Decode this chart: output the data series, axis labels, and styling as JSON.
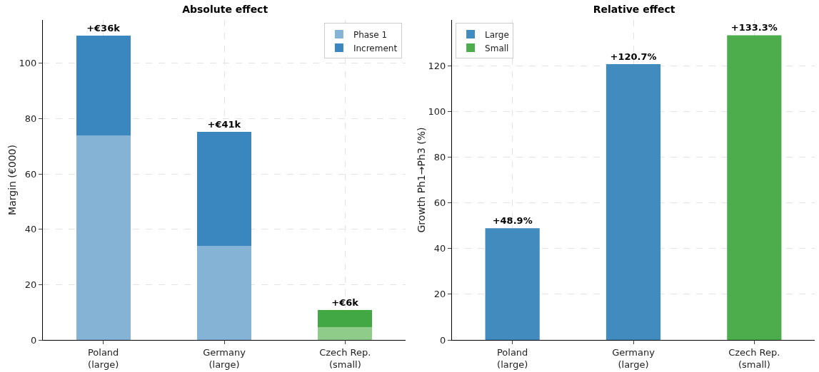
{
  "chart_data": [
    {
      "type": "bar",
      "title": "Absolute effect",
      "ylabel": "Margin (€000)",
      "categories": [
        "Poland\n(large)",
        "Germany\n(large)",
        "Czech Rep.\n(small)"
      ],
      "stacked": true,
      "series": [
        {
          "name": "Phase 1",
          "colors": [
            "#85b3d6",
            "#85b3d6",
            "#8fcc8a"
          ],
          "values": [
            74,
            34,
            4.6
          ]
        },
        {
          "name": "Increment",
          "colors": [
            "#3a86be",
            "#3a86be",
            "#42a844"
          ],
          "values": [
            36,
            41.3,
            6.2
          ],
          "value_labels": [
            "+€36k",
            "+€41k",
            "+€6k"
          ]
        }
      ],
      "ylim": [
        0,
        115.7
      ],
      "yticks": [
        0,
        20,
        40,
        60,
        80,
        100
      ],
      "grid": true,
      "legend": "top right"
    },
    {
      "type": "bar",
      "title": "Relative effect",
      "ylabel": "Growth Ph1→Ph3 (%)",
      "categories": [
        "Poland\n(large)",
        "Germany\n(large)",
        "Czech Rep.\n(small)"
      ],
      "series": [
        {
          "name": "Large",
          "color": "#428bbf",
          "values": [
            48.9,
            120.7,
            null
          ],
          "value_labels": [
            "+48.9%",
            "+120.7%",
            null
          ]
        },
        {
          "name": "Small",
          "color": "#4dad4d",
          "values": [
            null,
            null,
            133.3
          ],
          "value_labels": [
            null,
            null,
            "+133.3%"
          ]
        }
      ],
      "ylim": [
        0,
        140
      ],
      "yticks": [
        0,
        20,
        40,
        60,
        80,
        100,
        120
      ],
      "grid": true,
      "legend": "top left"
    }
  ]
}
